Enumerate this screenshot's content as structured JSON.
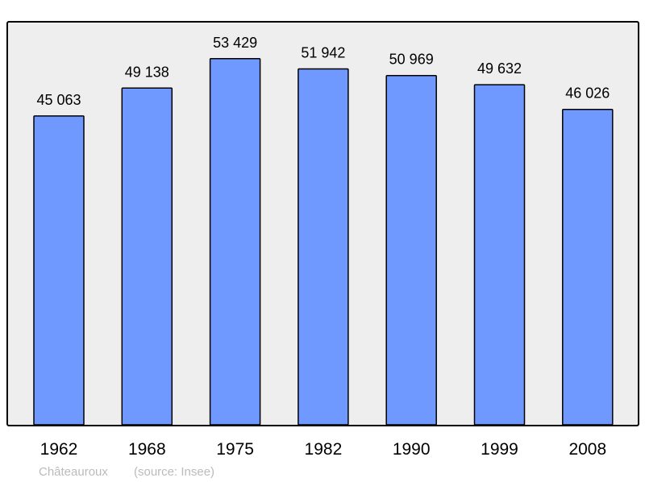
{
  "chart_data": {
    "type": "bar",
    "title": "",
    "xlabel": "",
    "ylabel": "",
    "categories": [
      "1962",
      "1968",
      "1975",
      "1982",
      "1990",
      "1999",
      "2008"
    ],
    "values": [
      45063,
      49138,
      53429,
      51942,
      50969,
      49632,
      46026
    ],
    "value_labels": [
      "45 063",
      "49 138",
      "53 429",
      "51 942",
      "50 969",
      "49 632",
      "46 026"
    ],
    "ylim": [
      0,
      58700
    ],
    "grid": false,
    "legend": "none",
    "colors": {
      "bar": "#7099ff",
      "plot_background": "#eeeeee",
      "caption": "#bbbbbb"
    }
  },
  "caption": {
    "place": "Châteauroux",
    "source": "(source: Insee)"
  }
}
